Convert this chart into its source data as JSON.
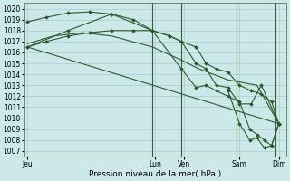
{
  "background_color": "#cce8e8",
  "grid_color": "#aacccc",
  "line_color": "#2d5a2d",
  "xlabel": "Pression niveau de la mer( hPa )",
  "ylim": [
    1006.5,
    1020.5
  ],
  "yticks": [
    1007,
    1008,
    1009,
    1010,
    1011,
    1012,
    1013,
    1014,
    1015,
    1016,
    1017,
    1018,
    1019,
    1020
  ],
  "xlim": [
    0,
    180
  ],
  "day_labels": [
    "Jeu",
    "Lun",
    "Ven",
    "Sam",
    "Dim"
  ],
  "day_positions": [
    2,
    90,
    110,
    148,
    175
  ],
  "vline_positions": [
    88,
    108,
    146,
    173
  ],
  "series": [
    {
      "x": [
        2,
        175
      ],
      "y": [
        1016.5,
        1009.5
      ],
      "marker": "",
      "markersize": 0,
      "linewidth": 0.8
    },
    {
      "x": [
        2,
        20,
        40,
        60,
        88,
        108,
        120,
        140,
        160,
        175
      ],
      "y": [
        1016.8,
        1017.5,
        1017.8,
        1017.5,
        1016.5,
        1015.3,
        1014.5,
        1013.5,
        1013.0,
        1009.5
      ],
      "marker": "",
      "markersize": 0,
      "linewidth": 0.8
    },
    {
      "x": [
        2,
        15,
        30,
        45,
        60,
        75,
        88,
        100,
        108,
        118,
        125,
        132,
        140,
        148,
        156,
        163,
        170,
        175
      ],
      "y": [
        1016.5,
        1017.0,
        1017.5,
        1017.8,
        1018.0,
        1018.0,
        1018.0,
        1017.5,
        1017.0,
        1016.5,
        1015.0,
        1014.5,
        1014.2,
        1013.0,
        1012.5,
        1012.2,
        1011.5,
        1009.5
      ],
      "marker": "D",
      "markersize": 2.0,
      "linewidth": 0.8
    },
    {
      "x": [
        2,
        15,
        30,
        45,
        60,
        75,
        88,
        100,
        108,
        118,
        125,
        132,
        140,
        148,
        156,
        163,
        175
      ],
      "y": [
        1018.8,
        1019.2,
        1019.6,
        1019.7,
        1019.5,
        1019.0,
        1018.0,
        1017.5,
        1017.0,
        1015.0,
        1014.5,
        1013.0,
        1012.8,
        1011.3,
        1011.3,
        1013.0,
        1009.5
      ],
      "marker": "D",
      "markersize": 2.0,
      "linewidth": 0.8
    },
    {
      "x": [
        2,
        30,
        60,
        88,
        108,
        118,
        125,
        132,
        140,
        148,
        155,
        160,
        165,
        170,
        175
      ],
      "y": [
        1016.5,
        1018.0,
        1019.5,
        1018.0,
        1014.5,
        1012.8,
        1013.0,
        1012.5,
        1012.0,
        1011.5,
        1009.0,
        1008.5,
        1008.0,
        1007.5,
        1009.5
      ],
      "marker": "D",
      "markersize": 2.0,
      "linewidth": 0.8
    },
    {
      "x": [
        140,
        148,
        155,
        160,
        165,
        170,
        175
      ],
      "y": [
        1012.5,
        1009.5,
        1008.0,
        1008.2,
        1007.3,
        1007.5,
        1009.5
      ],
      "marker": "D",
      "markersize": 2.0,
      "linewidth": 0.8
    }
  ]
}
